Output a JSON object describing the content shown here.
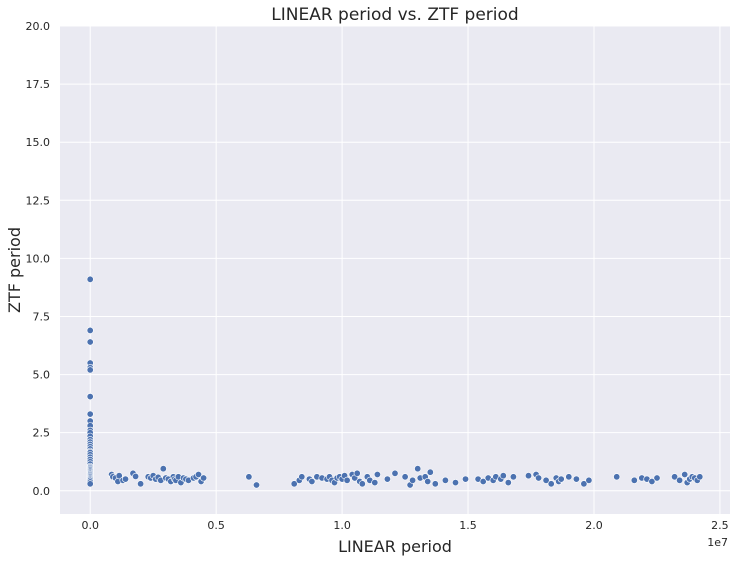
{
  "colors": {
    "background": "#eaeaf2",
    "grid": "#ffffff",
    "points": "#4c72b0",
    "text": "#262626"
  },
  "chart_data": {
    "type": "scatter",
    "title": "LINEAR period vs. ZTF period",
    "xlabel": "LINEAR period",
    "ylabel": "ZTF period",
    "x_offset_label": "1e7",
    "xlim": [
      -0.12,
      2.54
    ],
    "ylim": [
      -1.0,
      20.0
    ],
    "x_ticks": [
      0.0,
      0.5,
      1.0,
      1.5,
      2.0,
      2.5
    ],
    "x_tick_labels": [
      "0.0",
      "0.5",
      "1.0",
      "1.5",
      "2.0",
      "2.5"
    ],
    "y_ticks": [
      0.0,
      2.5,
      5.0,
      7.5,
      10.0,
      12.5,
      15.0,
      17.5,
      20.0
    ],
    "y_tick_labels": [
      "0.0",
      "2.5",
      "5.0",
      "7.5",
      "10.0",
      "12.5",
      "15.0",
      "17.5",
      "20.0"
    ],
    "grid": true,
    "series": [
      {
        "x": [
          0.0,
          0.0,
          0.0,
          0.0,
          0.0,
          0.0,
          0.0,
          0.0,
          0.0,
          0.0,
          0.0,
          0.0,
          0.0,
          0.0,
          0.0,
          0.0,
          0.0,
          0.0,
          0.0,
          0.0,
          0.0,
          0.0,
          0.0,
          0.0,
          0.0,
          0.0,
          0.0,
          0.0,
          0.0,
          0.0,
          0.0,
          0.0,
          0.0,
          0.0,
          0.0,
          0.0,
          0.0,
          0.0,
          0.0,
          0.0,
          0.085,
          0.09,
          0.1,
          0.11,
          0.115,
          0.13,
          0.14,
          0.17,
          0.18,
          0.2,
          0.23,
          0.24,
          0.25,
          0.26,
          0.27,
          0.28,
          0.29,
          0.3,
          0.31,
          0.32,
          0.33,
          0.335,
          0.34,
          0.35,
          0.36,
          0.37,
          0.38,
          0.39,
          0.41,
          0.42,
          0.43,
          0.44,
          0.45,
          0.63,
          0.66,
          0.81,
          0.83,
          0.84,
          0.87,
          0.88,
          0.9,
          0.92,
          0.94,
          0.95,
          0.96,
          0.97,
          0.98,
          0.99,
          1.0,
          1.01,
          1.02,
          1.04,
          1.05,
          1.06,
          1.07,
          1.08,
          1.1,
          1.11,
          1.13,
          1.14,
          1.18,
          1.21,
          1.25,
          1.27,
          1.28,
          1.3,
          1.31,
          1.33,
          1.34,
          1.35,
          1.37,
          1.41,
          1.45,
          1.49,
          1.54,
          1.56,
          1.58,
          1.6,
          1.61,
          1.63,
          1.64,
          1.66,
          1.68,
          1.74,
          1.77,
          1.78,
          1.81,
          1.83,
          1.85,
          1.86,
          1.87,
          1.9,
          1.93,
          1.96,
          1.98,
          2.09,
          2.16,
          2.19,
          2.21,
          2.23,
          2.25,
          2.32,
          2.34,
          2.36,
          2.37,
          2.38,
          2.39,
          2.4,
          2.41,
          2.42
        ],
        "y": [
          9.1,
          6.9,
          6.4,
          5.5,
          5.3,
          5.2,
          4.05,
          3.3,
          3.0,
          2.8,
          2.6,
          2.5,
          2.35,
          2.2,
          2.1,
          2.0,
          1.9,
          1.8,
          1.7,
          1.65,
          1.55,
          1.45,
          1.35,
          1.25,
          1.15,
          1.05,
          1.0,
          0.95,
          0.9,
          0.85,
          0.8,
          0.75,
          0.7,
          0.65,
          0.6,
          0.55,
          0.5,
          0.45,
          0.38,
          0.3,
          0.7,
          0.6,
          0.55,
          0.4,
          0.65,
          0.45,
          0.5,
          0.75,
          0.62,
          0.3,
          0.6,
          0.55,
          0.65,
          0.5,
          0.58,
          0.45,
          0.95,
          0.55,
          0.5,
          0.4,
          0.6,
          0.5,
          0.45,
          0.6,
          0.35,
          0.55,
          0.5,
          0.45,
          0.55,
          0.6,
          0.7,
          0.4,
          0.55,
          0.6,
          0.25,
          0.3,
          0.45,
          0.6,
          0.5,
          0.4,
          0.6,
          0.55,
          0.5,
          0.6,
          0.45,
          0.35,
          0.55,
          0.6,
          0.5,
          0.65,
          0.45,
          0.7,
          0.55,
          0.75,
          0.4,
          0.3,
          0.6,
          0.45,
          0.35,
          0.7,
          0.5,
          0.75,
          0.6,
          0.25,
          0.45,
          0.95,
          0.55,
          0.6,
          0.4,
          0.8,
          0.3,
          0.45,
          0.35,
          0.5,
          0.5,
          0.4,
          0.55,
          0.45,
          0.6,
          0.5,
          0.65,
          0.35,
          0.6,
          0.65,
          0.7,
          0.55,
          0.45,
          0.3,
          0.55,
          0.4,
          0.5,
          0.6,
          0.5,
          0.3,
          0.45,
          0.6,
          0.45,
          0.55,
          0.5,
          0.4,
          0.55,
          0.6,
          0.45,
          0.7,
          0.35,
          0.5,
          0.6,
          0.55,
          0.45,
          0.6
        ]
      }
    ]
  }
}
